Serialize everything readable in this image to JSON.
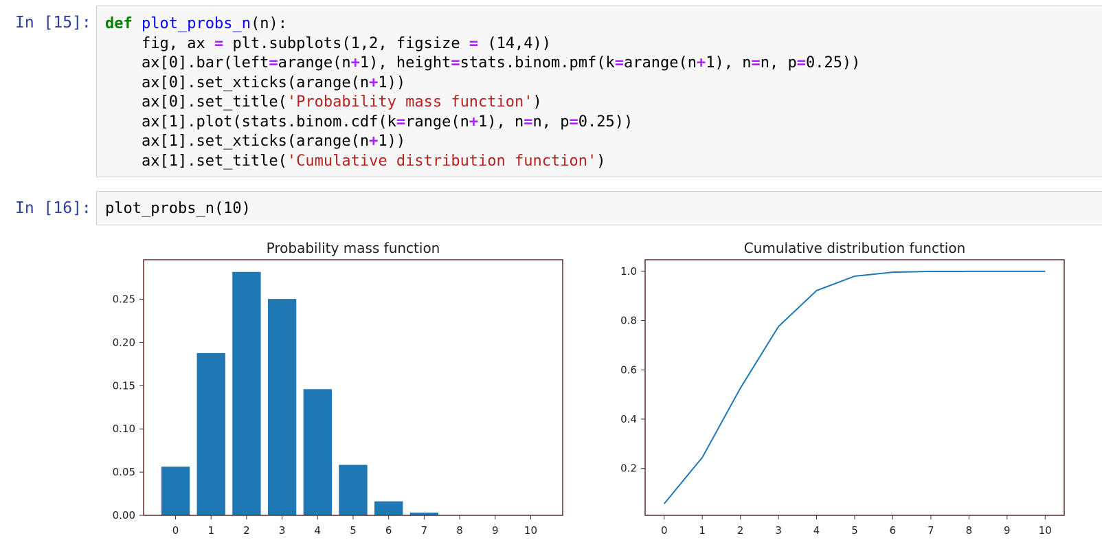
{
  "cells": [
    {
      "prompt": "In [15]:",
      "lines": [
        [
          [
            "kw",
            "def"
          ],
          [
            "t",
            " "
          ],
          [
            "fn",
            "plot_probs_n"
          ],
          [
            "t",
            "(n):"
          ]
        ],
        [
          [
            "t",
            "    fig, ax "
          ],
          [
            "op",
            "="
          ],
          [
            "t",
            " plt.subplots(1,2, figsize "
          ],
          [
            "op",
            "="
          ],
          [
            "t",
            " (14,4))"
          ]
        ],
        [
          [
            "t",
            "    ax[0].bar(left"
          ],
          [
            "op",
            "="
          ],
          [
            "t",
            "arange(n"
          ],
          [
            "op",
            "+"
          ],
          [
            "t",
            "1), height"
          ],
          [
            "op",
            "="
          ],
          [
            "t",
            "stats.binom.pmf(k"
          ],
          [
            "op",
            "="
          ],
          [
            "t",
            "arange(n"
          ],
          [
            "op",
            "+"
          ],
          [
            "t",
            "1), n"
          ],
          [
            "op",
            "="
          ],
          [
            "t",
            "n, p"
          ],
          [
            "op",
            "="
          ],
          [
            "t",
            "0.25))"
          ]
        ],
        [
          [
            "t",
            "    ax[0].set_xticks(arange(n"
          ],
          [
            "op",
            "+"
          ],
          [
            "t",
            "1))"
          ]
        ],
        [
          [
            "t",
            "    ax[0].set_title("
          ],
          [
            "str",
            "'Probability mass function'"
          ],
          [
            "t",
            ")"
          ]
        ],
        [
          [
            "t",
            "    ax[1].plot(stats.binom.cdf(k"
          ],
          [
            "op",
            "="
          ],
          [
            "t",
            "range(n"
          ],
          [
            "op",
            "+"
          ],
          [
            "t",
            "1), n"
          ],
          [
            "op",
            "="
          ],
          [
            "t",
            "n, p"
          ],
          [
            "op",
            "="
          ],
          [
            "t",
            "0.25))"
          ]
        ],
        [
          [
            "t",
            "    ax[1].set_xticks(arange(n"
          ],
          [
            "op",
            "+"
          ],
          [
            "t",
            "1))"
          ]
        ],
        [
          [
            "t",
            "    ax[1].set_title("
          ],
          [
            "str",
            "'Cumulative distribution function'"
          ],
          [
            "t",
            ")"
          ]
        ]
      ]
    },
    {
      "prompt": "In [16]:",
      "lines": [
        [
          [
            "t",
            "plot_probs_n(10)"
          ]
        ]
      ]
    }
  ],
  "colors": {
    "bar": "#1f77b4",
    "line": "#1f77b4",
    "axes": "#5b2a2a",
    "prompt": "#303f9f"
  },
  "chart_data": [
    {
      "type": "bar",
      "title": "Probability mass function",
      "categories": [
        "0",
        "1",
        "2",
        "3",
        "4",
        "5",
        "6",
        "7",
        "8",
        "9",
        "10"
      ],
      "values": [
        0.0563,
        0.1877,
        0.2816,
        0.2503,
        0.146,
        0.0584,
        0.0162,
        0.0031,
        0.0004,
        3e-05,
        1e-06
      ],
      "yticks": [
        "0.00",
        "0.05",
        "0.10",
        "0.15",
        "0.20",
        "0.25"
      ],
      "ytick_values": [
        0,
        0.05,
        0.1,
        0.15,
        0.2,
        0.25
      ],
      "ylim": [
        0,
        0.2957
      ],
      "xlim": [
        -0.9,
        10.9
      ],
      "xlabel": "",
      "ylabel": "",
      "grid": false
    },
    {
      "type": "line",
      "title": "Cumulative distribution function",
      "x": [
        0,
        1,
        2,
        3,
        4,
        5,
        6,
        7,
        8,
        9,
        10
      ],
      "values": [
        0.0563,
        0.244,
        0.5256,
        0.7759,
        0.9219,
        0.9803,
        0.9965,
        0.9996,
        1.0,
        1.0,
        1.0
      ],
      "xticks": [
        "0",
        "1",
        "2",
        "3",
        "4",
        "5",
        "6",
        "7",
        "8",
        "9",
        "10"
      ],
      "yticks": [
        "0.2",
        "0.4",
        "0.6",
        "0.8",
        "1.0"
      ],
      "ytick_values": [
        0.2,
        0.4,
        0.6,
        0.8,
        1.0
      ],
      "ylim": [
        0.0091,
        1.0472
      ],
      "xlim": [
        -0.5,
        10.5
      ],
      "xlabel": "",
      "ylabel": "",
      "grid": false
    }
  ]
}
